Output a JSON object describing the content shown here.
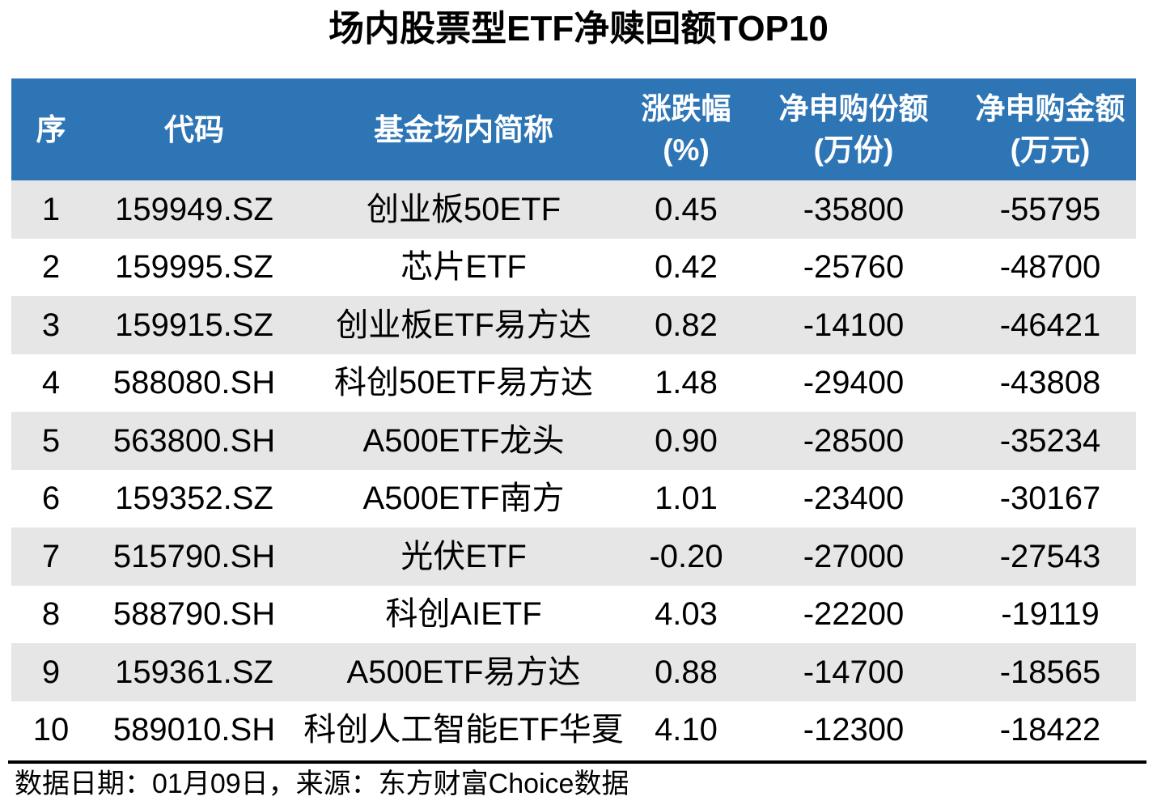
{
  "colors": {
    "header_bg": "#2E75B6",
    "header_text": "#FFFFFF",
    "stripe_bg": "#E6E6E6",
    "row_bg": "#FFFFFF",
    "text": "#000000",
    "rule": "#000000"
  },
  "chart_data": {
    "type": "table",
    "title": "场内股票型ETF净赎回额TOP10",
    "columns": [
      {
        "label": "序",
        "unit": ""
      },
      {
        "label": "代码",
        "unit": ""
      },
      {
        "label": "基金场内简称",
        "unit": ""
      },
      {
        "label": "涨跌幅",
        "unit": "(%)"
      },
      {
        "label": "净申购份额",
        "unit": "(万份)"
      },
      {
        "label": "净申购金额",
        "unit": "(万元)"
      }
    ],
    "rows": [
      [
        "1",
        "159949.SZ",
        "创业板50ETF",
        "0.45",
        "-35800",
        "-55795"
      ],
      [
        "2",
        "159995.SZ",
        "芯片ETF",
        "0.42",
        "-25760",
        "-48700"
      ],
      [
        "3",
        "159915.SZ",
        "创业板ETF易方达",
        "0.82",
        "-14100",
        "-46421"
      ],
      [
        "4",
        "588080.SH",
        "科创50ETF易方达",
        "1.48",
        "-29400",
        "-43808"
      ],
      [
        "5",
        "563800.SH",
        "A500ETF龙头",
        "0.90",
        "-28500",
        "-35234"
      ],
      [
        "6",
        "159352.SZ",
        "A500ETF南方",
        "1.01",
        "-23400",
        "-30167"
      ],
      [
        "7",
        "515790.SH",
        "光伏ETF",
        "-0.20",
        "-27000",
        "-27543"
      ],
      [
        "8",
        "588790.SH",
        "科创AIETF",
        "4.03",
        "-22200",
        "-19119"
      ],
      [
        "9",
        "159361.SZ",
        "A500ETF易方达",
        "0.88",
        "-14700",
        "-18565"
      ],
      [
        "10",
        "589010.SH",
        "科创人工智能ETF华夏",
        "4.10",
        "-12300",
        "-18422"
      ]
    ],
    "source_note": "数据日期：01月09日，来源：东方财富Choice数据",
    "layout": {
      "stripe_rows": "odd ranks shaded",
      "legend": "none",
      "grid": "off"
    }
  }
}
